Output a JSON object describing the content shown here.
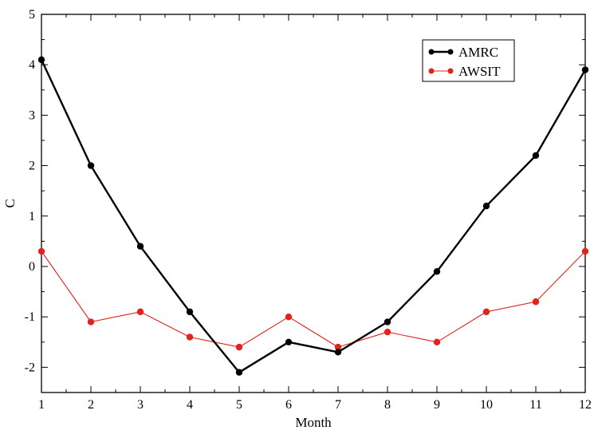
{
  "chart_data": {
    "type": "line",
    "title": "",
    "xlabel": "Month",
    "ylabel": "C",
    "xlim": [
      1,
      12
    ],
    "ylim": [
      -2.5,
      5
    ],
    "xticks": [
      "1",
      "2",
      "3",
      "4",
      "5",
      "6",
      "7",
      "8",
      "9",
      "10",
      "11",
      "12"
    ],
    "yticks": [
      "-2",
      "-1",
      "0",
      "1",
      "2",
      "3",
      "4",
      "5"
    ],
    "x": [
      1,
      2,
      3,
      4,
      5,
      6,
      7,
      8,
      9,
      10,
      11,
      12
    ],
    "series": [
      {
        "name": "AMRC",
        "color": "#000000",
        "values": [
          4.1,
          2.0,
          0.4,
          -0.9,
          -2.1,
          -1.5,
          -1.7,
          -1.1,
          -0.1,
          1.2,
          2.2,
          3.9
        ]
      },
      {
        "name": "AWSIT",
        "color": "#e0231d",
        "values": [
          0.3,
          -1.1,
          -0.9,
          -1.4,
          -1.6,
          -1.0,
          -1.6,
          -1.3,
          -1.5,
          -0.9,
          -0.7,
          0.3
        ]
      }
    ],
    "legend_position": "top-right",
    "grid": false
  }
}
